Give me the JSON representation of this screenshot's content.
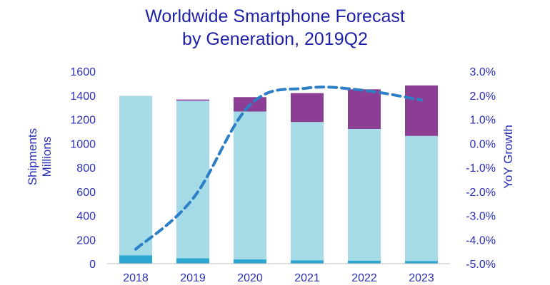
{
  "colors": {
    "title": "#1f22a8",
    "axis_text": "#2a2fb8",
    "gen_3g": "#2ba7d1",
    "gen_4g": "#a5dbe6",
    "gen_5g": "#8c3e95",
    "yoy_line": "#2c7fc7"
  },
  "chart_data": {
    "type": "bar",
    "stacked": true,
    "title": "Worldwide Smartphone Forecast",
    "subtitle": "by Generation, 2019Q2",
    "ylabel": "Shipments",
    "ylabel2": "Millions",
    "y2label": "YoY Growth",
    "categories": [
      "2018",
      "2019",
      "2020",
      "2021",
      "2022",
      "2023"
    ],
    "ylim": [
      0,
      1600
    ],
    "yticks": [
      "0",
      "200",
      "400",
      "600",
      "800",
      "1000",
      "1200",
      "1400",
      "1600"
    ],
    "y2lim": [
      -5.0,
      3.0
    ],
    "y2ticks": [
      "-5.0%",
      "-4.0%",
      "-3.0%",
      "-2.0%",
      "-1.0%",
      "0.0%",
      "1.0%",
      "2.0%",
      "3.0%"
    ],
    "series": [
      {
        "values": [
          70,
          45,
          35,
          28,
          25,
          22
        ],
        "color_key": "gen_3g"
      },
      {
        "values": [
          1325,
          1310,
          1230,
          1150,
          1095,
          1040
        ],
        "color_key": "gen_4g"
      },
      {
        "values": [
          0,
          10,
          120,
          240,
          330,
          420
        ],
        "color_key": "gen_5g"
      }
    ],
    "line_series": {
      "axis": "right",
      "style": "dashed",
      "color_key": "yoy_line",
      "values": [
        -4.4,
        -2.3,
        1.6,
        2.3,
        2.2,
        1.8
      ]
    },
    "grid": false,
    "legend": "none"
  }
}
